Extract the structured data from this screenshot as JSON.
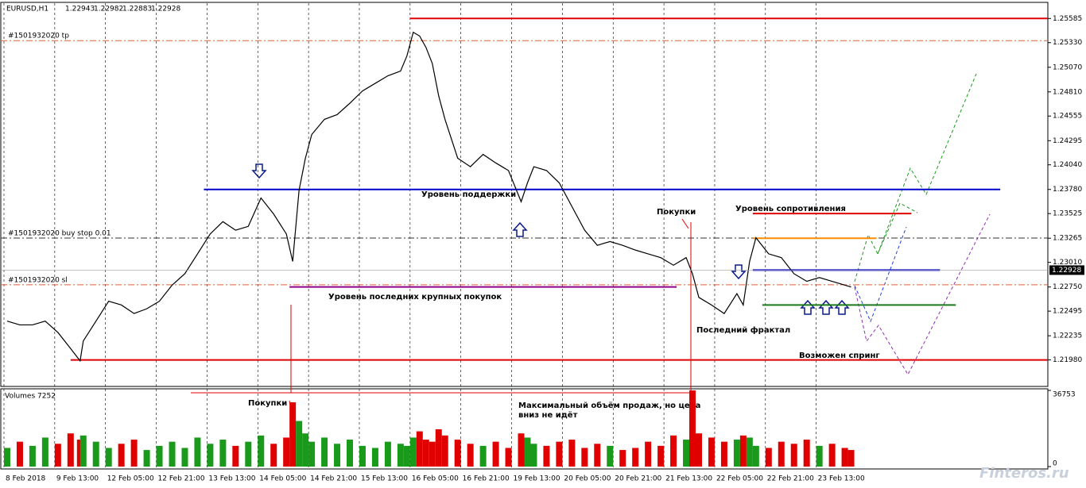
{
  "chart_data": [
    {
      "type": "line",
      "symbol": "EURUSD,H1",
      "ohlc": [
        1.22943,
        1.22982,
        1.22883,
        1.22928
      ],
      "color": "#000000",
      "x": [
        2,
        6,
        10,
        14,
        18,
        22,
        25,
        26,
        30,
        34,
        38,
        42,
        46,
        50,
        54,
        58,
        62,
        66,
        70,
        74,
        78,
        82,
        86,
        90,
        92,
        94,
        96,
        98,
        102,
        106,
        110,
        114,
        118,
        122,
        126,
        128,
        130,
        132,
        134,
        136,
        138,
        140,
        144,
        148,
        152,
        156,
        160,
        164,
        166,
        168,
        172,
        176,
        180,
        184,
        188,
        192,
        196,
        200,
        204,
        208,
        212,
        216,
        218,
        220,
        224,
        228,
        232,
        234,
        236,
        238,
        242,
        246,
        250,
        254,
        258,
        262,
        266,
        268
      ],
      "values": [
        1.2239,
        1.2235,
        1.2235,
        1.2239,
        1.2227,
        1.221,
        1.2197,
        1.2218,
        1.2239,
        1.226,
        1.2256,
        1.2247,
        1.2252,
        1.226,
        1.2277,
        1.2289,
        1.231,
        1.2331,
        1.2344,
        1.2335,
        1.2339,
        1.2369,
        1.2352,
        1.2331,
        1.2302,
        1.2377,
        1.2411,
        1.2436,
        1.2452,
        1.2457,
        1.2469,
        1.2482,
        1.249,
        1.2498,
        1.2503,
        1.2519,
        1.2544,
        1.254,
        1.2528,
        1.2511,
        1.2477,
        1.2452,
        1.2411,
        1.2402,
        1.2415,
        1.2406,
        1.2398,
        1.2365,
        1.2385,
        1.2402,
        1.2398,
        1.2385,
        1.236,
        1.2335,
        1.2319,
        1.2323,
        1.2319,
        1.2314,
        1.231,
        1.2306,
        1.2298,
        1.2306,
        1.2289,
        1.2264,
        1.2256,
        1.2247,
        1.2268,
        1.2256,
        1.2302,
        1.2327,
        1.231,
        1.2306,
        1.2289,
        1.2281,
        1.2285,
        1.2281,
        1.2277,
        1.2275
      ],
      "xlim": [
        0,
        330
      ],
      "xticks": [
        {
          "value": 1,
          "label": "8 Feb 2018"
        },
        {
          "value": 17,
          "label": "9 Feb 13:00"
        },
        {
          "value": 33,
          "label": "12 Feb 05:00"
        },
        {
          "value": 49,
          "label": "12 Feb 21:00"
        },
        {
          "value": 65,
          "label": "13 Feb 13:00"
        },
        {
          "value": 81,
          "label": "14 Feb 05:00"
        },
        {
          "value": 97,
          "label": "14 Feb 21:00"
        },
        {
          "value": 113,
          "label": "15 Feb 13:00"
        },
        {
          "value": 129,
          "label": "16 Feb 05:00"
        },
        {
          "value": 145,
          "label": "16 Feb 21:00"
        },
        {
          "value": 161,
          "label": "19 Feb 13:00"
        },
        {
          "value": 177,
          "label": "20 Feb 05:00"
        },
        {
          "value": 193,
          "label": "20 Feb 21:00"
        },
        {
          "value": 209,
          "label": "21 Feb 13:00"
        },
        {
          "value": 225,
          "label": "22 Feb 05:00"
        },
        {
          "value": 241,
          "label": "22 Feb 21:00"
        },
        {
          "value": 257,
          "label": "23 Feb 13:00"
        }
      ],
      "ylim": [
        1.217,
        1.2573
      ],
      "yticks": [
        1.25585,
        {
          "value": 1.2533,
          "label": "1.25330"
        },
        {
          "value": 1.2507,
          "label": "1.25070"
        },
        {
          "value": 1.2481,
          "label": "1.24810"
        },
        1.24555,
        1.24295,
        {
          "value": 1.2404,
          "label": "1.24040"
        },
        {
          "value": 1.2378,
          "label": "1.23780"
        },
        1.23525,
        1.23265,
        {
          "value": 1.2301,
          "label": "1.23010"
        },
        {
          "value": 1.2275,
          "label": "1.22750"
        },
        1.22495,
        1.22235,
        {
          "value": 1.2198,
          "label": "1.21980"
        }
      ],
      "levels": [
        {
          "value": 1.25585,
          "color": "#e00000",
          "x": [
            129,
            330
          ]
        },
        {
          "value": 1.2198,
          "color": "#e00000",
          "x": [
            22,
            330
          ]
        },
        {
          "value": 1.2378,
          "color": "#0000cc",
          "x": [
            64,
            315
          ]
        },
        {
          "value": 1.2275,
          "color": "#8b008b",
          "x": [
            91,
            213
          ]
        },
        {
          "value": 1.2256,
          "color": "#1a7a1a",
          "x": [
            240,
            301
          ]
        },
        {
          "value": 1.23525,
          "color": "#e00000",
          "x": [
            237,
            287
          ]
        },
        {
          "value": 1.23265,
          "color": "#ff8c00",
          "x": [
            237,
            276
          ]
        },
        {
          "value": 1.22928,
          "color": "#0000cc",
          "x": [
            237,
            296
          ]
        }
      ],
      "orders": [
        {
          "label": "#1501932020 tp",
          "value": 1.25351,
          "color": "#e06030"
        },
        {
          "label": "#1501932020 buy stop 0.01",
          "value": 1.23267,
          "color": "#333333"
        },
        {
          "label": "#1501932020 sl",
          "value": 1.22774,
          "color": "#e06030"
        }
      ],
      "annotations": [
        "Уровень поддержки",
        "Покупки",
        "Уровень сопротивления",
        "Уровень последних крупных покупок",
        "Последний фрактал",
        "Возможен спринг",
        "Покупки",
        "Максимальный объём продаж, но цена",
        "вниз не идёт"
      ],
      "watermark": "Finteros.ru"
    },
    {
      "type": "bar",
      "title": "Volumes 7252",
      "x": [
        2,
        6,
        10,
        14,
        18,
        22,
        25,
        26,
        30,
        34,
        38,
        42,
        46,
        50,
        54,
        58,
        62,
        66,
        70,
        74,
        78,
        82,
        86,
        90,
        92,
        94,
        96,
        98,
        102,
        106,
        110,
        114,
        118,
        122,
        126,
        128,
        130,
        132,
        134,
        136,
        138,
        140,
        144,
        148,
        152,
        156,
        160,
        164,
        166,
        168,
        172,
        176,
        180,
        184,
        188,
        192,
        196,
        200,
        204,
        208,
        212,
        216,
        218,
        220,
        224,
        228,
        232,
        234,
        236,
        238,
        242,
        246,
        250,
        254,
        258,
        262,
        266,
        268
      ],
      "values": [
        9000,
        12000,
        10000,
        14000,
        11000,
        16000,
        13000,
        15000,
        12000,
        9000,
        11000,
        13000,
        8000,
        10000,
        12000,
        9000,
        14000,
        11000,
        13000,
        10000,
        12000,
        15000,
        11000,
        14000,
        31000,
        22000,
        16000,
        12000,
        14000,
        11000,
        13000,
        10000,
        9000,
        12000,
        11000,
        10000,
        14000,
        17000,
        13000,
        12000,
        18000,
        15000,
        13000,
        11000,
        10000,
        12000,
        9000,
        16000,
        14000,
        11000,
        10000,
        12000,
        13000,
        9000,
        11000,
        10000,
        8000,
        9000,
        12000,
        10000,
        15000,
        13000,
        36753,
        16000,
        14000,
        12000,
        13000,
        15000,
        14000,
        10000,
        9000,
        12000,
        11000,
        13000,
        10000,
        11000,
        9000,
        8000
      ],
      "up_color": "#1a9a1a",
      "down_color": "#e00000",
      "xlim": [
        0,
        330
      ],
      "ylim": [
        0,
        36753
      ],
      "yticks": [
        0,
        36753
      ]
    }
  ]
}
